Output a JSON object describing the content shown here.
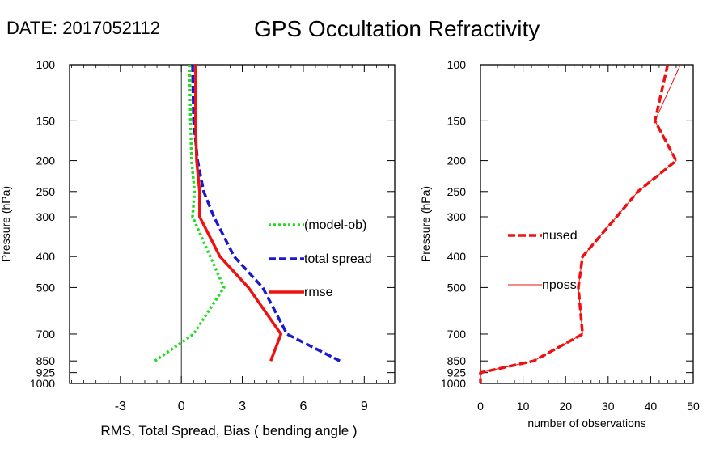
{
  "header": {
    "date_label": "DATE: 2017052112",
    "title": "GPS Occultation Refractivity"
  },
  "chart_data": [
    {
      "type": "line",
      "xlabel": "RMS, Total Spread, Bias ( bending angle )",
      "ylabel": "Pressure (hPa)",
      "xlim": [
        -5.5,
        10.5
      ],
      "ylim": [
        1000,
        100
      ],
      "y_scale": "log",
      "x_ticks": [
        -3,
        0,
        3,
        6,
        9
      ],
      "y_ticks": [
        100,
        150,
        200,
        250,
        300,
        400,
        500,
        700,
        850,
        925,
        1000
      ],
      "zero_line": true,
      "grid": false,
      "legend_position": "right-center",
      "series": [
        {
          "name": "(model-ob)",
          "color": "#22dd22",
          "style": "dotted",
          "points": [
            [
              0.4,
              100
            ],
            [
              0.45,
              150
            ],
            [
              0.5,
              200
            ],
            [
              0.65,
              250
            ],
            [
              0.55,
              300
            ],
            [
              2.1,
              500
            ],
            [
              0.6,
              700
            ],
            [
              -1.3,
              850
            ]
          ]
        },
        {
          "name": "total spread",
          "color": "#1a1acc",
          "style": "dashed",
          "points": [
            [
              0.55,
              100
            ],
            [
              0.6,
              150
            ],
            [
              0.8,
              200
            ],
            [
              1.1,
              250
            ],
            [
              1.6,
              300
            ],
            [
              2.6,
              400
            ],
            [
              4.0,
              500
            ],
            [
              5.2,
              700
            ],
            [
              7.8,
              850
            ]
          ]
        },
        {
          "name": "rmse",
          "color": "#ee1111",
          "style": "solid",
          "points": [
            [
              0.7,
              100
            ],
            [
              0.7,
              150
            ],
            [
              0.75,
              200
            ],
            [
              0.9,
              250
            ],
            [
              0.9,
              300
            ],
            [
              1.9,
              400
            ],
            [
              3.3,
              500
            ],
            [
              4.9,
              700
            ],
            [
              4.4,
              850
            ]
          ]
        }
      ]
    },
    {
      "type": "line",
      "xlabel": "number of observations",
      "ylabel": "Pressure (hPa)",
      "xlim": [
        0,
        50
      ],
      "ylim": [
        1000,
        100
      ],
      "y_scale": "log",
      "x_ticks": [
        0,
        10,
        20,
        30,
        40,
        50
      ],
      "y_ticks": [
        100,
        150,
        200,
        250,
        300,
        400,
        500,
        700,
        850,
        925,
        1000
      ],
      "grid": false,
      "legend_position": "left-center",
      "series": [
        {
          "name": "nused",
          "color": "#ee1111",
          "style": "dashed",
          "points": [
            [
              44,
              100
            ],
            [
              41,
              150
            ],
            [
              46,
              200
            ],
            [
              37,
              250
            ],
            [
              32,
              300
            ],
            [
              24,
              400
            ],
            [
              23,
              500
            ],
            [
              24,
              700
            ],
            [
              12.5,
              850
            ],
            [
              0,
              925
            ],
            [
              0,
              1000
            ]
          ]
        },
        {
          "name": "nposs",
          "color": "#ee1111",
          "style": "thin",
          "points": [
            [
              47,
              100
            ],
            [
              41,
              150
            ],
            [
              46,
              200
            ],
            [
              37,
              250
            ],
            [
              32,
              300
            ],
            [
              24,
              400
            ],
            [
              23,
              500
            ],
            [
              24,
              700
            ],
            [
              12.5,
              850
            ],
            [
              0,
              925
            ],
            [
              0,
              1000
            ]
          ]
        }
      ]
    }
  ]
}
